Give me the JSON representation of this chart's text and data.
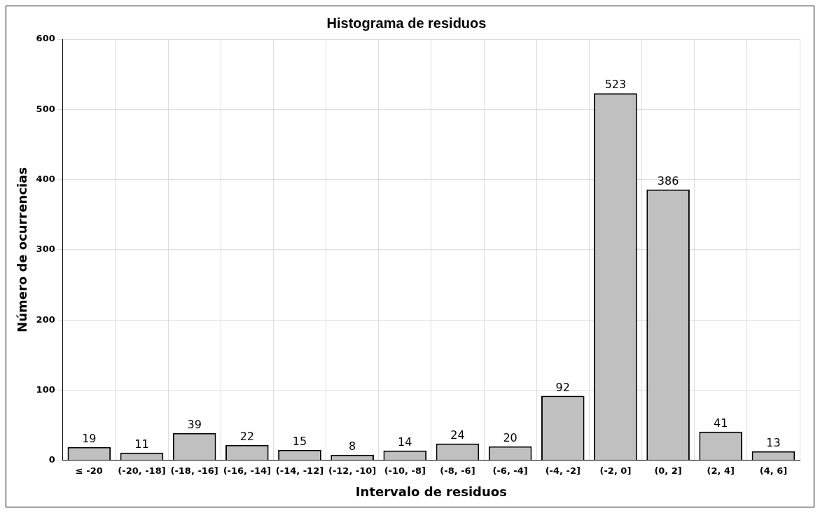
{
  "chart_data": {
    "type": "bar",
    "title": "Histograma de residuos",
    "xlabel": "Intervalo de residuos",
    "ylabel": "Número de ocurrencias",
    "categories": [
      "≤ -20",
      "(-20, -18]",
      "(-18, -16]",
      "(-16, -14]",
      "(-14, -12]",
      "(-12, -10]",
      "(-10, -8]",
      "(-8, -6]",
      "(-6, -4]",
      "(-4, -2]",
      "(-2, 0]",
      "(0, 2]",
      "(2, 4]",
      "(4, 6]"
    ],
    "values": [
      19,
      11,
      39,
      22,
      15,
      8,
      14,
      24,
      20,
      92,
      523,
      386,
      41,
      13
    ],
    "color": "#c0c0c0",
    "ylim": [
      0,
      600
    ],
    "yticks": [
      0,
      100,
      200,
      300,
      400,
      500,
      600
    ],
    "grid": true,
    "data_labels": true
  }
}
